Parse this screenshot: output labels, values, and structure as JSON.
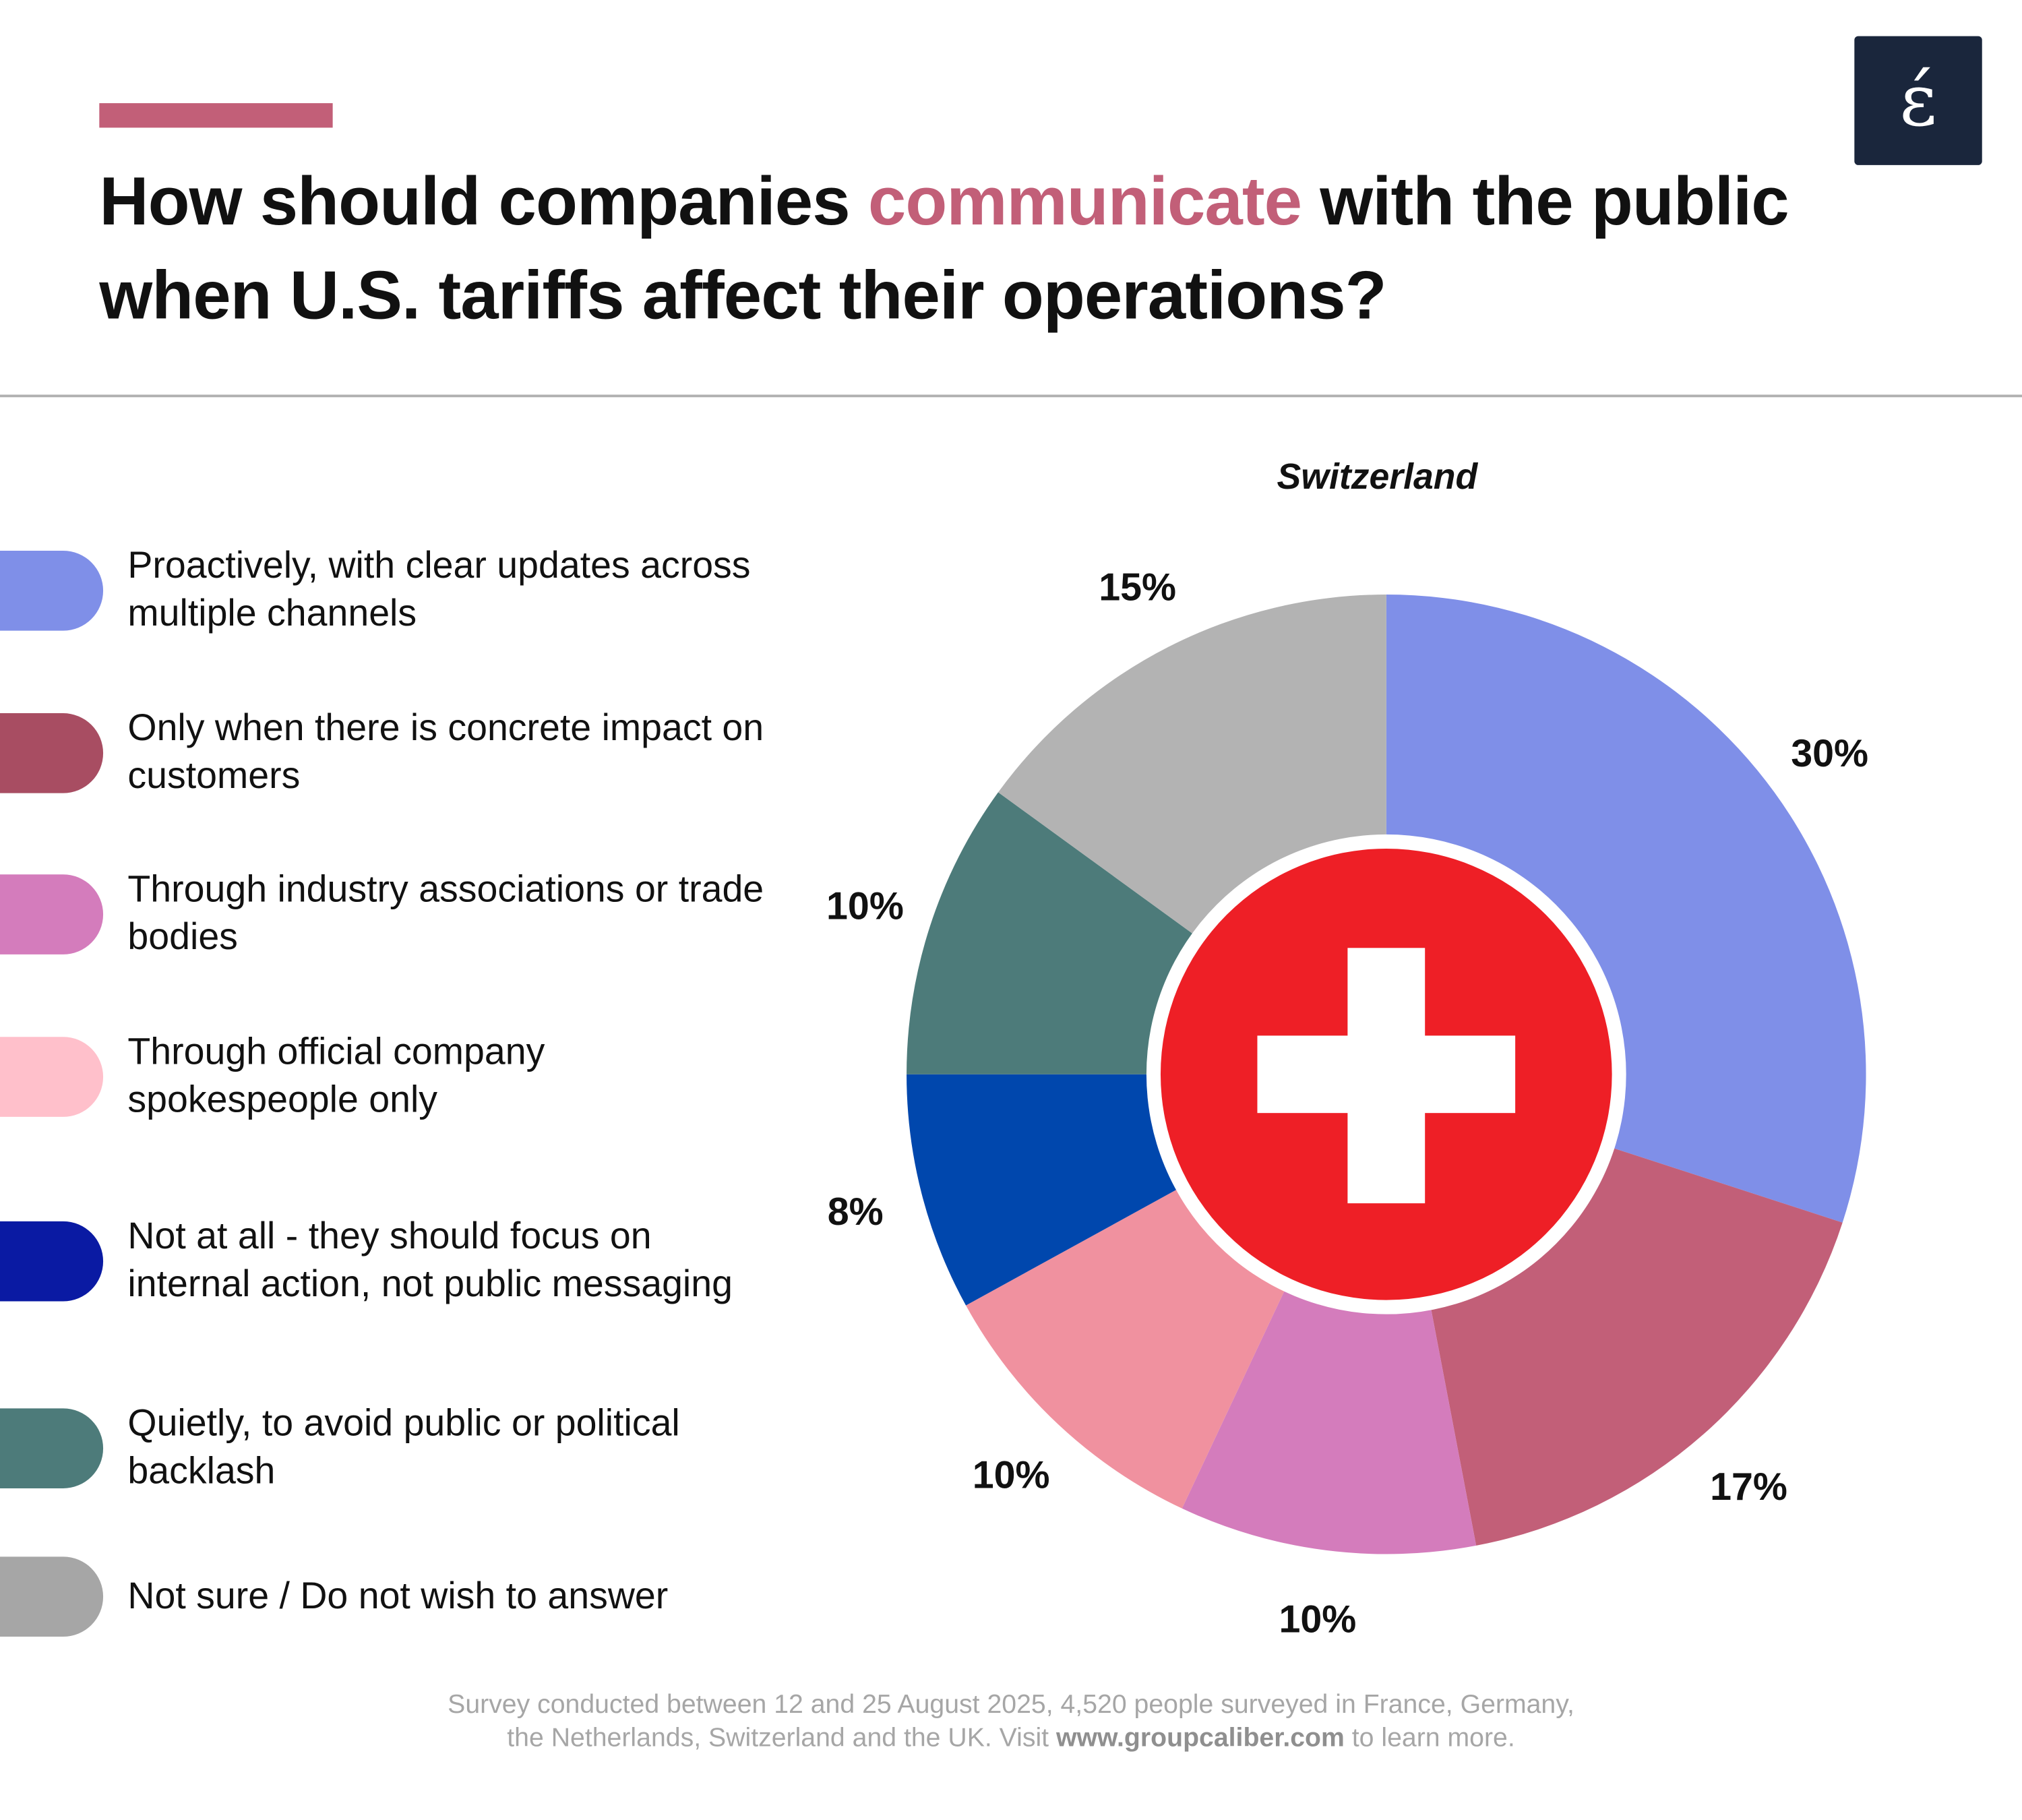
{
  "header": {
    "title_part1": "How should companies ",
    "title_highlight": "communicate",
    "title_part2": " with the public when U.S. tariffs affect their operations?",
    "accent_color": "#c25f78",
    "logo_text": "ɛ́",
    "logo_color": "#1a263c"
  },
  "chart_data": {
    "type": "pie",
    "style": "donut",
    "title": "Switzerland",
    "center_image": "swiss-flag",
    "start": "top",
    "direction": "clockwise",
    "categories": [
      "Proactively, with clear updates across multiple channels",
      "Only when there is concrete impact on customers",
      "Through industry associations or trade bodies",
      "Through official company spokespeople only",
      "Not at all - they should focus on internal action, not public messaging",
      "Quietly, to avoid public or political backlash",
      "Not sure / Do not wish to answer"
    ],
    "values": [
      30,
      17,
      10,
      10,
      8,
      10,
      15
    ],
    "data_labels": [
      "30%",
      "17%",
      "10%",
      "10%",
      "8%",
      "10%",
      "15%"
    ],
    "slice_colors": [
      "#7f8fe8",
      "#c25f78",
      "#d47cbc",
      "#f0919f",
      "#0047ad",
      "#4d7b7a",
      "#b3b3b3"
    ],
    "legend_colors": [
      "#7f8fe8",
      "#a84d62",
      "#d47cbc",
      "#ffc0cb",
      "#0a1aa3",
      "#4d7b7a",
      "#a6a6a6"
    ],
    "legend_placement": "left"
  },
  "footer": {
    "line1": "Survey conducted between 12 and 25 August 2025, 4,520 people surveyed in France, Germany,",
    "line2_prefix": "the Netherlands, Switzerland and the UK. Visit ",
    "link": "www.groupcaliber.com",
    "line2_suffix": " to learn more."
  }
}
